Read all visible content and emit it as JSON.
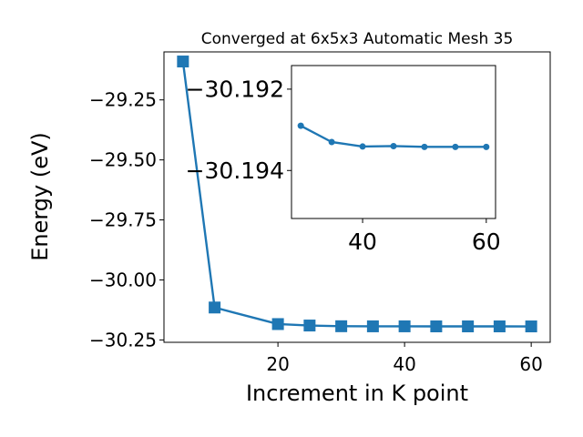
{
  "chart_data": [
    {
      "type": "line",
      "title": "Converged at 6x5x3 Automatic Mesh 35",
      "xlabel": "Increment in K point",
      "ylabel": "Energy (eV)",
      "xlim": [
        2,
        63
      ],
      "ylim": [
        -30.26,
        -29.05
      ],
      "xticks": [
        20,
        40,
        60
      ],
      "xtick_labels": [
        "20",
        "40",
        "60"
      ],
      "yticks": [
        -29.25,
        -29.5,
        -29.75,
        -30.0,
        -30.25
      ],
      "ytick_labels": [
        "−29.25",
        "−29.50",
        "−29.75",
        "−30.00",
        "−30.25"
      ],
      "grid": false,
      "color": "#1f77b4",
      "marker": "square",
      "x": [
        5,
        10,
        20,
        25,
        30,
        35,
        40,
        45,
        50,
        55,
        60
      ],
      "y": [
        -29.09,
        -30.115,
        -30.184,
        -30.19,
        -30.193,
        -30.1934,
        -30.1934,
        -30.1936,
        -30.1936,
        -30.1936,
        -30.1937
      ]
    },
    {
      "type": "line",
      "title": "",
      "xlabel": "",
      "ylabel": "",
      "xlim": [
        28.5,
        61.5
      ],
      "ylim": [
        -30.19518,
        -30.19142
      ],
      "xticks": [
        40,
        60
      ],
      "xtick_labels": [
        "40",
        "60"
      ],
      "yticks": [
        -30.194,
        -30.192
      ],
      "ytick_labels": [
        "−30.194",
        "−30.192"
      ],
      "grid": false,
      "color": "#1f77b4",
      "marker": "circle",
      "x": [
        30,
        35,
        40,
        45,
        50,
        55,
        60
      ],
      "y": [
        -30.1929,
        -30.1933,
        -30.19341,
        -30.1934,
        -30.19342,
        -30.19342,
        -30.19342
      ]
    }
  ]
}
